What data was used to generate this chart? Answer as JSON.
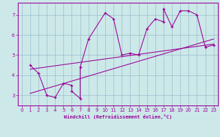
{
  "xlabel": "Windchill (Refroidissement éolien,°C)",
  "background_color": "#cce8e8",
  "line_color": "#990099",
  "grid_color": "#99bbcc",
  "xlim": [
    -0.5,
    23.5
  ],
  "ylim": [
    2.5,
    7.6
  ],
  "yticks": [
    3,
    4,
    5,
    6,
    7
  ],
  "xticks": [
    0,
    1,
    2,
    3,
    4,
    5,
    6,
    7,
    8,
    9,
    10,
    11,
    12,
    13,
    14,
    15,
    16,
    17,
    18,
    19,
    20,
    21,
    22,
    23
  ],
  "data_x": [
    1,
    2,
    3,
    4,
    5,
    6,
    6,
    7,
    7,
    8,
    10,
    11,
    12,
    13,
    14,
    15,
    16,
    17,
    17,
    18,
    19,
    20,
    21,
    22,
    23
  ],
  "data_y": [
    4.5,
    4.1,
    3.0,
    2.9,
    3.6,
    3.5,
    3.2,
    2.85,
    4.4,
    5.8,
    7.1,
    6.8,
    5.0,
    5.1,
    5.0,
    6.3,
    6.8,
    6.65,
    7.3,
    6.4,
    7.2,
    7.2,
    7.0,
    5.4,
    5.5
  ],
  "line1_x": [
    1,
    23
  ],
  "line1_y": [
    4.3,
    5.55
  ],
  "line2_x": [
    1,
    23
  ],
  "line2_y": [
    3.1,
    5.8
  ]
}
